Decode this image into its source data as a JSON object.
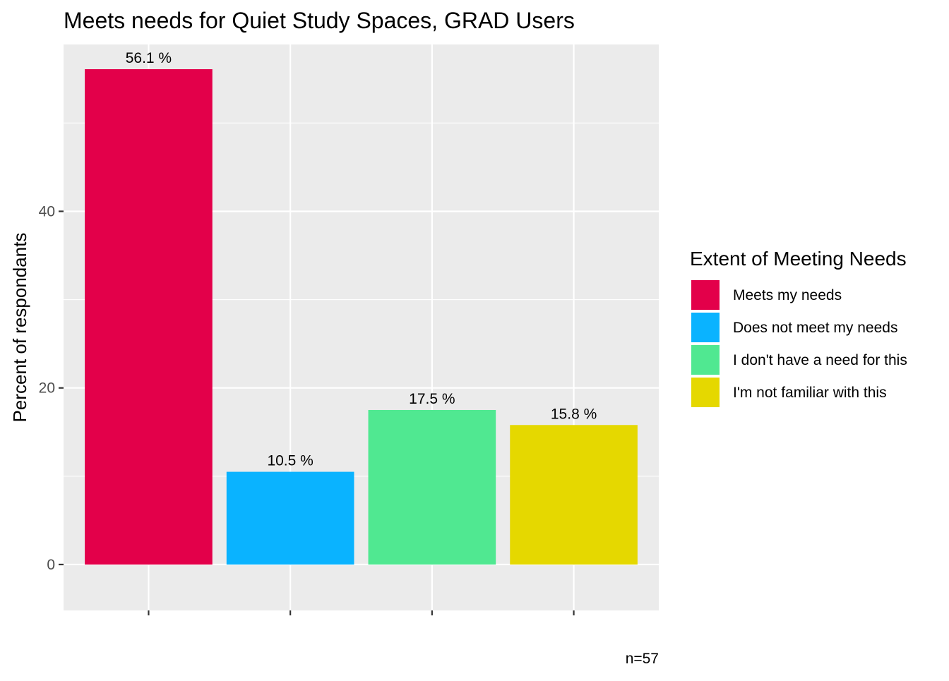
{
  "chart_data": {
    "type": "bar",
    "title": "Meets needs for Quiet Study Spaces, GRAD Users",
    "xlabel": "",
    "ylabel": "Percent of respondants",
    "ylim": [
      -5.2,
      58.9
    ],
    "yticks": [
      0,
      20,
      40
    ],
    "grid": true,
    "categories": [
      "Meets my needs",
      "Does not meet my needs",
      "I don't have a need for this",
      "I'm not familiar with this"
    ],
    "values": [
      56.1,
      10.5,
      17.5,
      15.8
    ],
    "data_labels": [
      "56.1 %",
      "10.5 %",
      "17.5 %",
      "15.8 %"
    ],
    "colors": [
      "#e3004a",
      "#0ab3ff",
      "#50e891",
      "#e5d800"
    ],
    "legend": {
      "title": "Extent of Meeting Needs",
      "position": "right",
      "entries": [
        "Meets my needs",
        "Does not meet my needs",
        "I don't have a need for this",
        "I'm not familiar with this"
      ]
    },
    "caption": "n=57"
  }
}
